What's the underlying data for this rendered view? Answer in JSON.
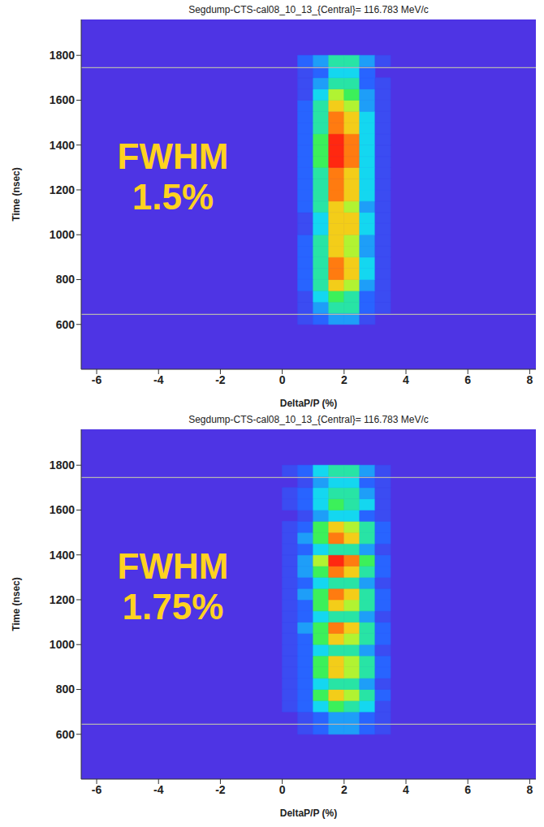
{
  "chart_data": [
    {
      "type": "heatmap",
      "title": "Segdump-CTS-cal08_10_13_{Central}= 116.783 MeV/c",
      "x_label": "DeltaP/P (%)",
      "y_label": "Time (nsec)",
      "xlim": [
        -6.5,
        8.2
      ],
      "ylim": [
        400,
        1960
      ],
      "xticks": [
        -6,
        -4,
        -2,
        0,
        2,
        4,
        6,
        8
      ],
      "yticks": [
        600,
        800,
        1000,
        1200,
        1400,
        1600,
        1800
      ],
      "reference_lines": [
        645,
        1745
      ],
      "annotation": [
        "FWHM",
        "1.5%"
      ],
      "heatmap": {
        "x_edges": [
          -0.5,
          0,
          0.5,
          1,
          1.5,
          2,
          2.5,
          3,
          3.5,
          4,
          4.5
        ],
        "y_edges": [
          600,
          650,
          700,
          750,
          800,
          850,
          900,
          950,
          1000,
          1050,
          1100,
          1150,
          1200,
          1250,
          1300,
          1350,
          1400,
          1450,
          1500,
          1550,
          1600,
          1650,
          1700,
          1750,
          1800
        ],
        "zlim": [
          0,
          10
        ],
        "cells": [
          [
            0,
            0,
            1,
            2,
            3,
            3,
            1,
            0,
            0,
            0
          ],
          [
            0,
            0,
            1,
            3,
            5,
            5,
            2,
            1,
            0,
            0
          ],
          [
            0,
            0,
            1,
            4,
            6,
            5,
            2,
            1,
            0,
            0
          ],
          [
            0,
            0,
            2,
            5,
            8,
            7,
            3,
            1,
            0,
            0
          ],
          [
            0,
            0,
            2,
            5,
            9,
            8,
            4,
            1,
            0,
            0
          ],
          [
            0,
            0,
            2,
            5,
            9,
            8,
            4,
            1,
            0,
            0
          ],
          [
            0,
            0,
            2,
            5,
            8,
            7,
            3,
            1,
            0,
            0
          ],
          [
            0,
            0,
            2,
            5,
            8,
            7,
            3,
            1,
            0,
            0
          ],
          [
            0,
            0,
            1,
            4,
            8,
            8,
            4,
            1,
            0,
            0
          ],
          [
            0,
            0,
            1,
            4,
            8,
            8,
            4,
            1,
            0,
            0
          ],
          [
            0,
            0,
            2,
            5,
            8,
            7,
            3,
            1,
            0,
            0
          ],
          [
            0,
            0,
            2,
            5,
            9,
            8,
            4,
            1,
            0,
            0
          ],
          [
            0,
            0,
            2,
            5,
            9,
            8,
            4,
            1,
            0,
            0
          ],
          [
            0,
            0,
            2,
            5,
            9,
            8,
            4,
            1,
            0,
            0
          ],
          [
            0,
            0,
            2,
            6,
            10,
            9,
            4,
            1,
            0,
            0
          ],
          [
            0,
            0,
            2,
            6,
            10,
            9,
            4,
            1,
            0,
            0
          ],
          [
            0,
            0,
            2,
            6,
            10,
            9,
            4,
            1,
            0,
            0
          ],
          [
            0,
            0,
            2,
            5,
            9,
            8,
            4,
            1,
            0,
            0
          ],
          [
            0,
            0,
            2,
            5,
            9,
            8,
            4,
            1,
            0,
            0
          ],
          [
            0,
            0,
            2,
            5,
            8,
            7,
            3,
            1,
            0,
            0
          ],
          [
            0,
            0,
            1,
            4,
            7,
            6,
            3,
            1,
            0,
            0
          ],
          [
            0,
            0,
            1,
            3,
            5,
            5,
            2,
            1,
            0,
            0
          ],
          [
            0,
            0,
            1,
            2,
            4,
            4,
            2,
            0,
            0,
            0
          ],
          [
            0,
            0,
            2,
            3,
            5,
            5,
            3,
            1,
            0,
            0
          ]
        ]
      }
    },
    {
      "type": "heatmap",
      "title": "Segdump-CTS-cal08_10_13_{Central}= 116.783 MeV/c",
      "x_label": "DeltaP/P (%)",
      "y_label": "Time (nsec)",
      "xlim": [
        -6.5,
        8.2
      ],
      "ylim": [
        400,
        1960
      ],
      "xticks": [
        -6,
        -4,
        -2,
        0,
        2,
        4,
        6,
        8
      ],
      "yticks": [
        600,
        800,
        1000,
        1200,
        1400,
        1600,
        1800
      ],
      "reference_lines": [
        645,
        1745
      ],
      "annotation": [
        "FWHM",
        "1.75%"
      ],
      "heatmap": {
        "x_edges": [
          -0.5,
          0,
          0.5,
          1,
          1.5,
          2,
          2.5,
          3,
          3.5,
          4,
          4.5
        ],
        "y_edges": [
          600,
          650,
          700,
          750,
          800,
          850,
          900,
          950,
          1000,
          1050,
          1100,
          1150,
          1200,
          1250,
          1300,
          1350,
          1400,
          1450,
          1500,
          1550,
          1600,
          1650,
          1700,
          1750,
          1800
        ],
        "zlim": [
          0,
          10
        ],
        "cells": [
          [
            0,
            0,
            1,
            2,
            3,
            3,
            2,
            1,
            0,
            0
          ],
          [
            0,
            0,
            1,
            2,
            3,
            3,
            2,
            1,
            0,
            0
          ],
          [
            0,
            1,
            2,
            4,
            6,
            5,
            4,
            1,
            0,
            0
          ],
          [
            0,
            1,
            2,
            6,
            8,
            7,
            5,
            2,
            0,
            0
          ],
          [
            0,
            1,
            2,
            4,
            5,
            5,
            3,
            1,
            0,
            0
          ],
          [
            0,
            1,
            2,
            6,
            8,
            7,
            5,
            2,
            0,
            0
          ],
          [
            0,
            1,
            2,
            6,
            8,
            7,
            5,
            2,
            0,
            0
          ],
          [
            0,
            1,
            2,
            4,
            5,
            5,
            3,
            1,
            0,
            0
          ],
          [
            0,
            1,
            2,
            6,
            8,
            7,
            5,
            2,
            0,
            0
          ],
          [
            0,
            1,
            3,
            6,
            9,
            8,
            5,
            2,
            0,
            0
          ],
          [
            0,
            1,
            2,
            4,
            5,
            5,
            3,
            1,
            0,
            0
          ],
          [
            0,
            1,
            2,
            6,
            8,
            7,
            5,
            2,
            0,
            0
          ],
          [
            0,
            1,
            3,
            6,
            9,
            8,
            5,
            2,
            0,
            0
          ],
          [
            0,
            1,
            2,
            4,
            5,
            5,
            3,
            1,
            0,
            0
          ],
          [
            0,
            1,
            3,
            6,
            9,
            8,
            5,
            2,
            0,
            0
          ],
          [
            0,
            1,
            3,
            7,
            10,
            9,
            6,
            2,
            0,
            0
          ],
          [
            0,
            1,
            2,
            4,
            5,
            5,
            3,
            1,
            0,
            0
          ],
          [
            0,
            1,
            3,
            6,
            9,
            8,
            5,
            2,
            0,
            0
          ],
          [
            0,
            1,
            2,
            6,
            8,
            7,
            5,
            2,
            0,
            0
          ],
          [
            0,
            0,
            1,
            3,
            4,
            4,
            2,
            1,
            0,
            0
          ],
          [
            0,
            1,
            2,
            4,
            6,
            5,
            4,
            1,
            0,
            0
          ],
          [
            0,
            1,
            2,
            4,
            5,
            5,
            3,
            1,
            0,
            0
          ],
          [
            0,
            0,
            1,
            3,
            4,
            4,
            2,
            1,
            0,
            0
          ],
          [
            0,
            1,
            2,
            4,
            5,
            5,
            3,
            1,
            0,
            0
          ]
        ]
      }
    }
  ]
}
